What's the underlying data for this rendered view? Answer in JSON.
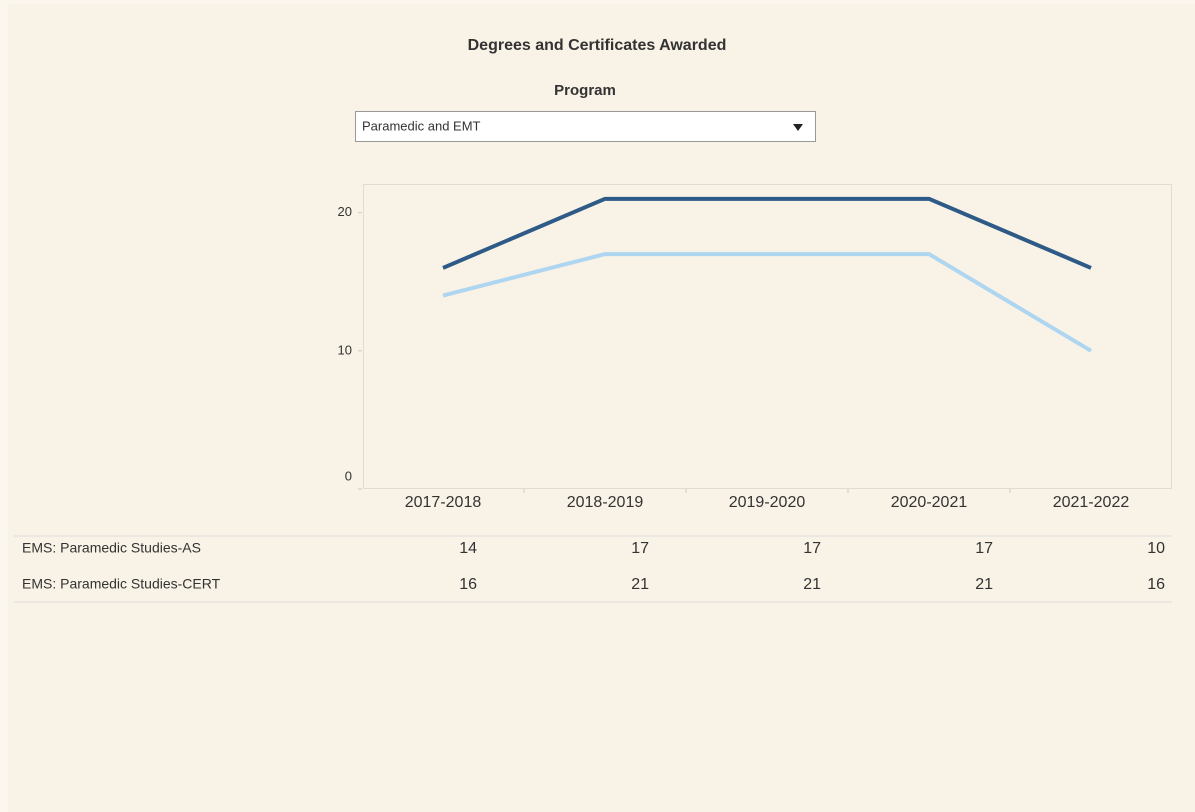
{
  "chart_data": {
    "type": "line",
    "title": "Degrees and Certificates Awarded",
    "filter_label": "Program",
    "filter_value": "Paramedic and EMT",
    "categories": [
      "2017-2018",
      "2018-2019",
      "2019-2020",
      "2020-2021",
      "2021-2022"
    ],
    "series": [
      {
        "name": "EMS: Paramedic Studies-AS",
        "color": "#aed6f1",
        "values": [
          14,
          17,
          17,
          17,
          10
        ]
      },
      {
        "name": "EMS: Paramedic Studies-CERT",
        "color": "#2e5a87",
        "values": [
          16,
          21,
          21,
          21,
          16
        ]
      }
    ],
    "ylim": [
      0,
      22
    ],
    "yticks": [
      0,
      10,
      20
    ],
    "grid": false
  }
}
